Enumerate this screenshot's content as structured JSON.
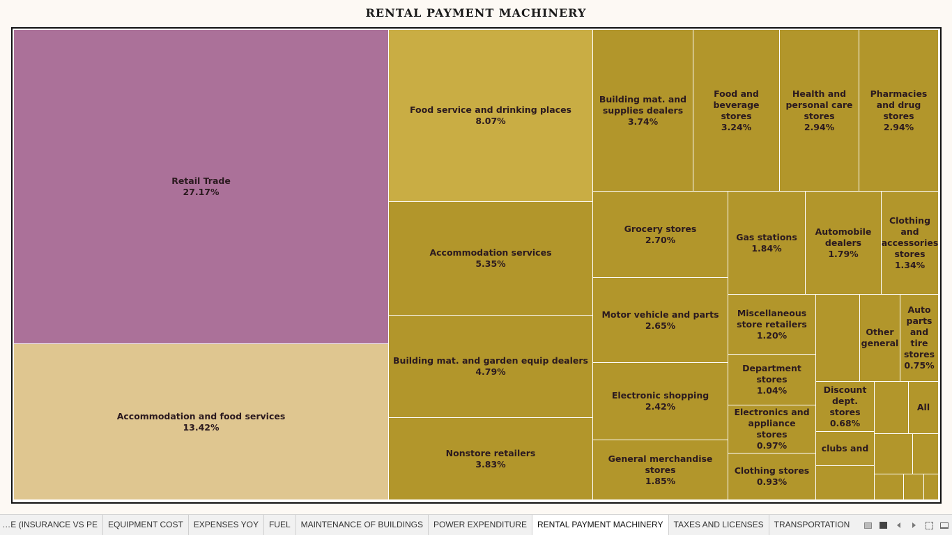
{
  "title": "RENTAL PAYMENT MACHINERY",
  "colors": {
    "retail": "#ab7199",
    "accommodation": "#dfc690",
    "food_service": "#c9ad44",
    "gold": "#b2962b"
  },
  "chart_data": {
    "type": "treemap",
    "title": "RENTAL PAYMENT MACHINERY",
    "cells": [
      {
        "label": "Retail Trade",
        "value": "27.17%"
      },
      {
        "label": "Accommodation and food services",
        "value": "13.42%"
      },
      {
        "label": "Food service and drinking places",
        "value": "8.07%"
      },
      {
        "label": "Accommodation services",
        "value": "5.35%"
      },
      {
        "label": "Building mat. and garden equip dealers",
        "value": "4.79%"
      },
      {
        "label": "Nonstore retailers",
        "value": "3.83%"
      },
      {
        "label": "Building mat. and supplies dealers",
        "value": "3.74%"
      },
      {
        "label": "Food and beverage stores",
        "value": "3.24%"
      },
      {
        "label": "Health and personal care stores",
        "value": "2.94%"
      },
      {
        "label": "Pharmacies and drug stores",
        "value": "2.94%"
      },
      {
        "label": "Grocery stores",
        "value": "2.70%"
      },
      {
        "label": "Motor vehicle and parts",
        "value": "2.65%"
      },
      {
        "label": "Electronic shopping",
        "value": "2.42%"
      },
      {
        "label": "General merchandise stores",
        "value": "1.85%"
      },
      {
        "label": "Gas stations",
        "value": "1.84%"
      },
      {
        "label": "Automobile dealers",
        "value": "1.79%"
      },
      {
        "label": "Clothing and accessories stores",
        "value": "1.34%"
      },
      {
        "label": "Miscellaneous store retailers",
        "value": "1.20%"
      },
      {
        "label": "Department stores",
        "value": "1.04%"
      },
      {
        "label": "Electronics and appliance stores",
        "value": "0.97%"
      },
      {
        "label": "Clothing stores",
        "value": "0.93%"
      },
      {
        "label": "",
        "value": ""
      },
      {
        "label": "Other general",
        "value": ""
      },
      {
        "label": "Auto parts and tire stores",
        "value": "0.75%"
      },
      {
        "label": "Discount dept. stores",
        "value": "0.68%"
      },
      {
        "label": "",
        "value": ""
      },
      {
        "label": "All",
        "value": ""
      },
      {
        "label": "clubs and",
        "value": ""
      },
      {
        "label": "",
        "value": ""
      },
      {
        "label": "",
        "value": ""
      },
      {
        "label": "",
        "value": ""
      },
      {
        "label": "",
        "value": ""
      },
      {
        "label": "",
        "value": ""
      },
      {
        "label": "",
        "value": ""
      }
    ]
  },
  "tabs": [
    {
      "label": "EMPLOYEE (INSURANCE VS PE...",
      "active": false
    },
    {
      "label": "EQUIPMENT COST",
      "active": false
    },
    {
      "label": "EXPENSES YOY",
      "active": false
    },
    {
      "label": "FUEL",
      "active": false
    },
    {
      "label": "MAINTENANCE OF BUILDINGS",
      "active": false
    },
    {
      "label": "POWER EXPENDITURE",
      "active": false
    },
    {
      "label": "RENTAL PAYMENT MACHINERY",
      "active": true
    },
    {
      "label": "TAXES AND LICENSES",
      "active": false
    },
    {
      "label": "TRANSPORTATION",
      "active": false
    }
  ],
  "controls": [
    "grid-view-icon",
    "single-view-icon",
    "previous-sheet-icon",
    "next-sheet-icon",
    "fullscreen-icon",
    "presentation-mode-icon"
  ]
}
